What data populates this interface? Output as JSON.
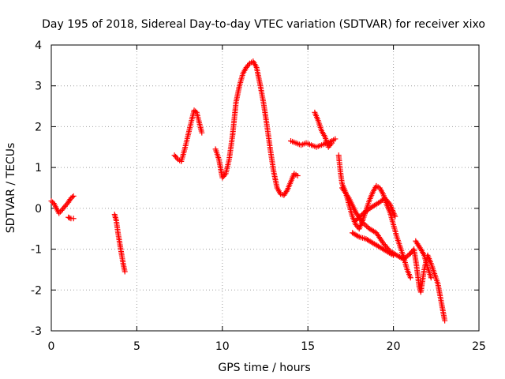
{
  "chart_data": {
    "type": "scatter",
    "title": "Day 195 of 2018, Sidereal Day-to-day VTEC variation (SDTVAR) for receiver xixo",
    "xlabel": "GPS time / hours",
    "ylabel": "SDTVAR / TECUs",
    "xlim": [
      0,
      25
    ],
    "ylim": [
      -3,
      4
    ],
    "xticks": [
      "0",
      "5",
      "10",
      "15",
      "20",
      "25"
    ],
    "yticks": [
      "-3",
      "-2",
      "-1",
      "0",
      "1",
      "2",
      "3",
      "4"
    ],
    "grid": true,
    "marker": "+",
    "colors": {
      "series": "#ff0000",
      "axis": "#000000",
      "grid": "#a0a0a0"
    },
    "series": [
      {
        "name": "SDTVAR",
        "segments": [
          [
            [
              0.0,
              0.18
            ],
            [
              0.15,
              0.12
            ],
            [
              0.3,
              0.0
            ],
            [
              0.45,
              -0.12
            ],
            [
              0.6,
              -0.05
            ],
            [
              0.8,
              0.05
            ],
            [
              1.0,
              0.15
            ],
            [
              1.15,
              0.25
            ],
            [
              1.3,
              0.3
            ]
          ],
          [
            [
              1.0,
              -0.22
            ],
            [
              1.15,
              -0.25
            ],
            [
              1.3,
              -0.25
            ]
          ],
          [
            [
              3.7,
              -0.15
            ],
            [
              3.8,
              -0.3
            ],
            [
              3.9,
              -0.6
            ],
            [
              4.0,
              -0.85
            ],
            [
              4.1,
              -1.1
            ],
            [
              4.2,
              -1.35
            ],
            [
              4.3,
              -1.55
            ]
          ],
          [
            [
              7.2,
              1.3
            ],
            [
              7.4,
              1.2
            ],
            [
              7.6,
              1.15
            ],
            [
              7.8,
              1.45
            ],
            [
              8.0,
              1.8
            ],
            [
              8.2,
              2.15
            ],
            [
              8.35,
              2.4
            ],
            [
              8.5,
              2.35
            ],
            [
              8.65,
              2.1
            ],
            [
              8.8,
              1.85
            ]
          ],
          [
            [
              9.6,
              1.45
            ],
            [
              9.8,
              1.2
            ],
            [
              10.0,
              0.75
            ],
            [
              10.2,
              0.85
            ],
            [
              10.4,
              1.2
            ],
            [
              10.6,
              1.8
            ],
            [
              10.8,
              2.6
            ],
            [
              11.0,
              3.0
            ],
            [
              11.2,
              3.3
            ],
            [
              11.4,
              3.45
            ],
            [
              11.6,
              3.55
            ],
            [
              11.8,
              3.6
            ],
            [
              12.0,
              3.45
            ],
            [
              12.2,
              3.05
            ],
            [
              12.4,
              2.6
            ],
            [
              12.6,
              2.05
            ],
            [
              12.8,
              1.45
            ],
            [
              13.0,
              0.9
            ],
            [
              13.2,
              0.5
            ],
            [
              13.4,
              0.35
            ],
            [
              13.6,
              0.32
            ],
            [
              13.8,
              0.45
            ],
            [
              14.0,
              0.65
            ],
            [
              14.2,
              0.85
            ],
            [
              14.4,
              0.8
            ]
          ],
          [
            [
              14.0,
              1.65
            ],
            [
              14.3,
              1.6
            ],
            [
              14.6,
              1.55
            ],
            [
              14.9,
              1.6
            ],
            [
              15.2,
              1.55
            ],
            [
              15.5,
              1.5
            ],
            [
              15.8,
              1.55
            ],
            [
              16.1,
              1.6
            ],
            [
              16.4,
              1.65
            ],
            [
              16.6,
              1.7
            ]
          ],
          [
            [
              15.4,
              2.35
            ],
            [
              15.6,
              2.15
            ],
            [
              15.8,
              1.9
            ],
            [
              16.0,
              1.75
            ],
            [
              16.2,
              1.5
            ],
            [
              16.4,
              1.6
            ]
          ],
          [
            [
              16.8,
              1.3
            ],
            [
              16.9,
              0.9
            ],
            [
              17.0,
              0.6
            ],
            [
              17.2,
              0.4
            ],
            [
              17.4,
              0.1
            ],
            [
              17.6,
              -0.2
            ],
            [
              17.8,
              -0.4
            ],
            [
              18.0,
              -0.5
            ],
            [
              18.2,
              -0.3
            ],
            [
              18.4,
              -0.05
            ],
            [
              18.6,
              0.2
            ],
            [
              18.8,
              0.4
            ],
            [
              19.0,
              0.55
            ],
            [
              19.2,
              0.5
            ],
            [
              19.4,
              0.35
            ],
            [
              19.6,
              0.1
            ],
            [
              19.8,
              -0.1
            ],
            [
              20.0,
              -0.4
            ],
            [
              20.2,
              -0.7
            ],
            [
              20.4,
              -0.95
            ],
            [
              20.6,
              -1.2
            ],
            [
              20.8,
              -1.5
            ],
            [
              21.0,
              -1.7
            ]
          ],
          [
            [
              17.0,
              0.5
            ],
            [
              17.4,
              0.25
            ],
            [
              17.8,
              -0.1
            ],
            [
              18.2,
              -0.35
            ],
            [
              18.6,
              -0.5
            ],
            [
              19.0,
              -0.6
            ],
            [
              19.4,
              -0.85
            ],
            [
              19.8,
              -1.05
            ],
            [
              20.2,
              -1.15
            ],
            [
              20.6,
              -1.25
            ],
            [
              21.0,
              -1.1
            ]
          ],
          [
            [
              17.6,
              -0.6
            ],
            [
              18.0,
              -0.7
            ],
            [
              18.4,
              -0.75
            ],
            [
              18.8,
              -0.85
            ],
            [
              19.2,
              -0.95
            ],
            [
              19.6,
              -1.05
            ],
            [
              20.0,
              -1.15
            ]
          ],
          [
            [
              17.8,
              -0.3
            ],
            [
              18.3,
              -0.1
            ],
            [
              18.8,
              0.05
            ],
            [
              19.2,
              0.15
            ],
            [
              19.5,
              0.25
            ],
            [
              19.8,
              0.1
            ],
            [
              20.1,
              -0.2
            ]
          ],
          [
            [
              21.0,
              -1.1
            ],
            [
              21.2,
              -1.0
            ],
            [
              21.35,
              -1.4
            ],
            [
              21.5,
              -1.9
            ],
            [
              21.6,
              -2.05
            ],
            [
              21.8,
              -1.5
            ],
            [
              22.0,
              -1.15
            ],
            [
              22.2,
              -1.35
            ],
            [
              22.4,
              -1.6
            ],
            [
              22.6,
              -1.85
            ],
            [
              22.8,
              -2.3
            ],
            [
              23.0,
              -2.75
            ]
          ],
          [
            [
              21.3,
              -0.8
            ],
            [
              21.6,
              -1.0
            ],
            [
              21.8,
              -1.15
            ],
            [
              22.0,
              -1.45
            ],
            [
              22.2,
              -1.7
            ]
          ]
        ]
      }
    ]
  }
}
